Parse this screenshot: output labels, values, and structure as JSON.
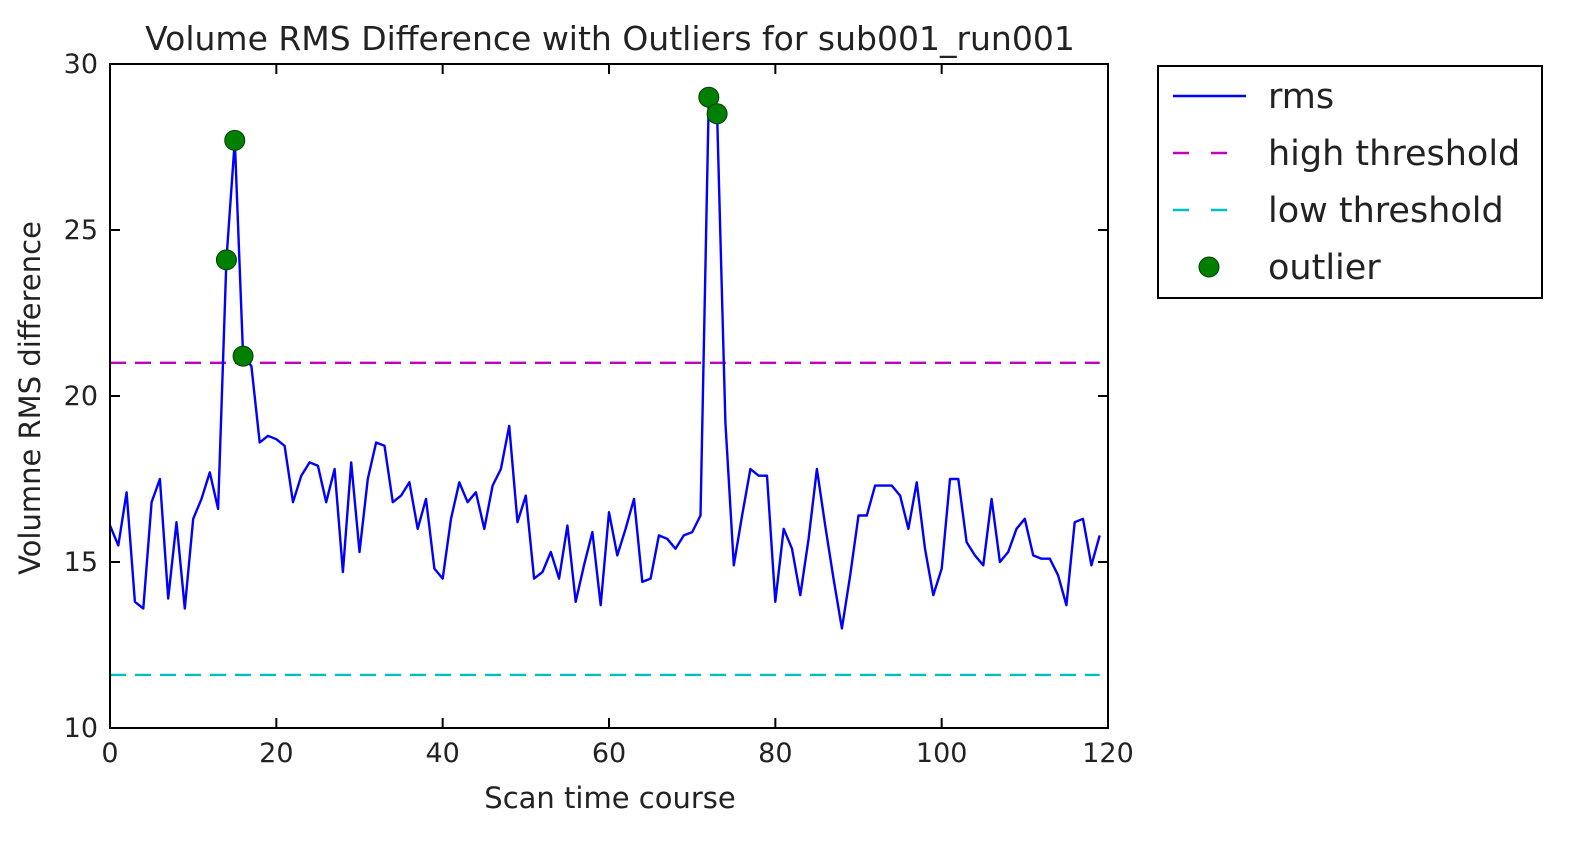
{
  "chart_data": {
    "type": "line",
    "title": "Volume RMS Difference with Outliers for sub001_run001",
    "xlabel": "Scan time course",
    "ylabel": "Volumne RMS difference",
    "xlim": [
      0,
      120
    ],
    "ylim": [
      10,
      30
    ],
    "xticks": [
      0,
      20,
      40,
      60,
      80,
      100,
      120
    ],
    "yticks": [
      10,
      15,
      20,
      25,
      30
    ],
    "grid": false,
    "legend_position": "outside-top-right",
    "series": [
      {
        "name": "rms",
        "style": "solid",
        "color": "#0000ff",
        "x": [
          0,
          1,
          2,
          3,
          4,
          5,
          6,
          7,
          8,
          9,
          10,
          11,
          12,
          13,
          14,
          15,
          16,
          17,
          18,
          19,
          20,
          21,
          22,
          23,
          24,
          25,
          26,
          27,
          28,
          29,
          30,
          31,
          32,
          33,
          34,
          35,
          36,
          37,
          38,
          39,
          40,
          41,
          42,
          43,
          44,
          45,
          46,
          47,
          48,
          49,
          50,
          51,
          52,
          53,
          54,
          55,
          56,
          57,
          58,
          59,
          60,
          61,
          62,
          63,
          64,
          65,
          66,
          67,
          68,
          69,
          70,
          71,
          72,
          73,
          74,
          75,
          76,
          77,
          78,
          79,
          80,
          81,
          82,
          83,
          84,
          85,
          86,
          87,
          88,
          89,
          90,
          91,
          92,
          93,
          94,
          95,
          96,
          97,
          98,
          99,
          100,
          101,
          102,
          103,
          104,
          105,
          106,
          107,
          108,
          109,
          110,
          111,
          112,
          113,
          114,
          115,
          116,
          117,
          118,
          119
        ],
        "values": [
          16.1,
          15.5,
          17.1,
          13.8,
          13.6,
          16.8,
          17.5,
          13.9,
          16.2,
          13.6,
          16.3,
          16.9,
          17.7,
          16.6,
          24.1,
          27.7,
          21.2,
          20.9,
          18.6,
          18.8,
          18.7,
          18.5,
          16.8,
          17.6,
          18.0,
          17.9,
          16.8,
          17.8,
          14.7,
          18.0,
          15.3,
          17.5,
          18.6,
          18.5,
          16.8,
          17.0,
          17.4,
          16.0,
          16.9,
          14.8,
          14.5,
          16.3,
          17.4,
          16.8,
          17.1,
          16.0,
          17.3,
          17.8,
          19.1,
          16.2,
          17.0,
          14.5,
          14.7,
          15.3,
          14.5,
          16.1,
          13.8,
          14.9,
          15.9,
          13.7,
          16.5,
          15.2,
          16.0,
          16.9,
          14.4,
          14.5,
          15.8,
          15.7,
          15.4,
          15.8,
          15.9,
          16.4,
          29.0,
          28.5,
          19.2,
          14.9,
          16.4,
          17.8,
          17.6,
          17.6,
          13.8,
          16.0,
          15.4,
          14.0,
          15.7,
          17.8,
          16.1,
          14.5,
          13.0,
          14.6,
          16.4,
          16.4,
          17.3,
          17.3,
          17.3,
          17.0,
          16.0,
          17.4,
          15.4,
          14.0,
          14.8,
          17.5,
          17.5,
          15.6,
          15.2,
          14.9,
          16.9,
          15.0,
          15.3,
          16.0,
          16.3,
          15.2,
          15.1,
          15.1,
          14.6,
          13.7,
          16.2,
          16.3,
          14.9,
          15.8
        ]
      },
      {
        "name": "high threshold",
        "style": "dashed",
        "color": "#bf00bf",
        "x": [
          0,
          119
        ],
        "values": [
          21.0,
          21.0
        ]
      },
      {
        "name": "low threshold",
        "style": "dashed",
        "color": "#00bfbf",
        "x": [
          0,
          119
        ],
        "values": [
          11.6,
          11.6
        ]
      },
      {
        "name": "outlier",
        "style": "marker",
        "color": "#007f00",
        "x": [
          14,
          15,
          16,
          72,
          73
        ],
        "values": [
          24.1,
          27.7,
          21.2,
          29.0,
          28.5
        ]
      }
    ]
  }
}
